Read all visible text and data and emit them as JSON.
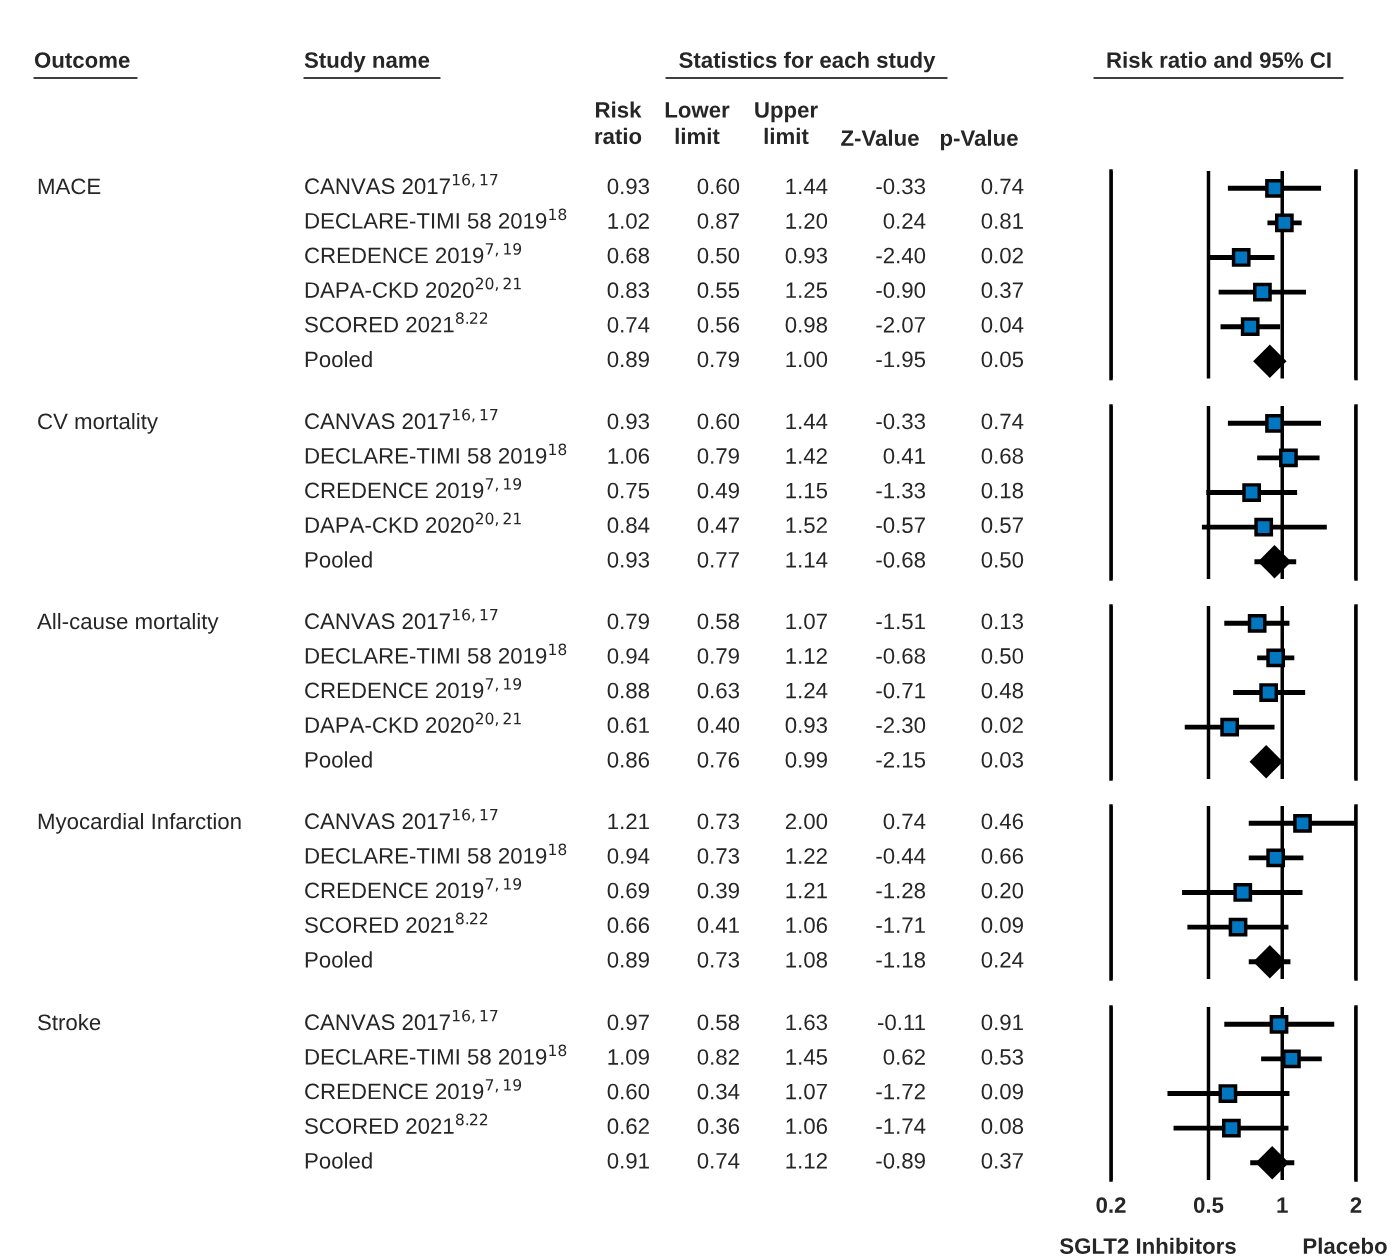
{
  "chart_data": [
    {
      "type": "other",
      "annotations": [
        "Outcome",
        "Study name",
        "Statistics for each study",
        "Risk ratio and 95% CI",
        "Risk\nratio",
        "Lower\nlimit",
        "Upper\nlimit",
        "Z-Value",
        "p-Value"
      ]
    },
    {
      "type": "scatter",
      "orientation": "horizontal",
      "log": "x",
      "xlim": [
        0.2,
        2
      ],
      "xticks": [
        0.2,
        0.5,
        1,
        2
      ],
      "grid": "x",
      "tick_labels": false,
      "categories": [
        "CANVAS 2017$^{16,17}$",
        "DECLARE-TIMI 58 2019$^{18}$",
        "CREDENCE 2019$^{7,19}$",
        "DAPA-CKD 2020$^{20,21}$",
        "SCORED 2021$^{8.22}$",
        "Pooled"
      ],
      "series": [
        {
          "color": "#0077c0",
          "marker": "square",
          "values": [
            0.93,
            1.02,
            0.68,
            0.83,
            0.74,
            null
          ],
          "errors": [
            [
              0.6,
              1.44
            ],
            [
              0.87,
              1.2
            ],
            [
              0.5,
              0.93
            ],
            [
              0.55,
              1.25
            ],
            [
              0.56,
              0.98
            ],
            null
          ]
        },
        {
          "color": "#000000",
          "marker": "diamond",
          "values": [
            null,
            null,
            null,
            null,
            null,
            0.89
          ],
          "errors": [
            null,
            null,
            null,
            null,
            null,
            [
              0.79,
              1.0
            ]
          ]
        }
      ],
      "annotations": [
        "MACE",
        "0.93",
        "0.60",
        "1.44",
        "-0.33",
        "0.74",
        "1.02",
        "0.87",
        "1.20",
        "0.24",
        "0.81",
        "0.68",
        "0.50",
        "0.93",
        "-2.40",
        "0.02",
        "0.83",
        "0.55",
        "1.25",
        "-0.90",
        "0.37",
        "0.74",
        "0.56",
        "0.98",
        "-2.07",
        "0.04",
        "0.89",
        "0.79",
        "1.00",
        "-1.95",
        "0.05"
      ]
    },
    {
      "type": "scatter",
      "orientation": "horizontal",
      "log": "x",
      "xlim": [
        0.2,
        2
      ],
      "xticks": [
        0.2,
        0.5,
        1,
        2
      ],
      "grid": "x",
      "tick_labels": false,
      "categories": [
        "CANVAS 2017$^{16,17}$",
        "DECLARE-TIMI 58 2019$^{18}$",
        "CREDENCE 2019$^{7,19}$",
        "DAPA-CKD 2020$^{20,21}$",
        "Pooled"
      ],
      "series": [
        {
          "color": "#0077c0",
          "marker": "square",
          "values": [
            0.93,
            1.06,
            0.75,
            0.84,
            null
          ],
          "errors": [
            [
              0.6,
              1.44
            ],
            [
              0.79,
              1.42
            ],
            [
              0.49,
              1.15
            ],
            [
              0.47,
              1.52
            ],
            null
          ]
        },
        {
          "color": "#000000",
          "marker": "diamond",
          "values": [
            null,
            null,
            null,
            null,
            0.93
          ],
          "errors": [
            null,
            null,
            null,
            null,
            [
              0.77,
              1.14
            ]
          ]
        }
      ],
      "annotations": [
        "CV mortality",
        "0.93",
        "0.60",
        "1.44",
        "-0.33",
        "0.74",
        "1.06",
        "0.79",
        "1.42",
        "0.41",
        "0.68",
        "0.75",
        "0.49",
        "1.15",
        "-1.33",
        "0.18",
        "0.84",
        "0.47",
        "1.52",
        "-0.57",
        "0.57",
        "0.93",
        "0.77",
        "1.14",
        "-0.68",
        "0.50"
      ]
    },
    {
      "type": "scatter",
      "orientation": "horizontal",
      "log": "x",
      "xlim": [
        0.2,
        2
      ],
      "xticks": [
        0.2,
        0.5,
        1,
        2
      ],
      "grid": "x",
      "tick_labels": false,
      "categories": [
        "CANVAS 2017$^{16,17}$",
        "DECLARE-TIMI 58 2019$^{18}$",
        "CREDENCE 2019$^{7,19}$",
        "DAPA-CKD 2020$^{20,21}$",
        "Pooled"
      ],
      "series": [
        {
          "color": "#0077c0",
          "marker": "square",
          "values": [
            0.79,
            0.94,
            0.88,
            0.61,
            null
          ],
          "errors": [
            [
              0.58,
              1.07
            ],
            [
              0.79,
              1.12
            ],
            [
              0.63,
              1.24
            ],
            [
              0.4,
              0.93
            ],
            null
          ]
        },
        {
          "color": "#000000",
          "marker": "diamond",
          "values": [
            null,
            null,
            null,
            null,
            0.86
          ],
          "errors": [
            null,
            null,
            null,
            null,
            [
              0.76,
              0.99
            ]
          ]
        }
      ],
      "annotations": [
        "All-cause mortality",
        "0.79",
        "0.58",
        "1.07",
        "-1.51",
        "0.13",
        "0.94",
        "0.79",
        "1.12",
        "-0.68",
        "0.50",
        "0.88",
        "0.63",
        "1.24",
        "-0.71",
        "0.48",
        "0.61",
        "0.40",
        "0.93",
        "-2.30",
        "0.02",
        "0.86",
        "0.76",
        "0.99",
        "-2.15",
        "0.03"
      ]
    },
    {
      "type": "scatter",
      "orientation": "horizontal",
      "log": "x",
      "xlim": [
        0.2,
        2
      ],
      "xticks": [
        0.2,
        0.5,
        1,
        2
      ],
      "grid": "x",
      "tick_labels": false,
      "categories": [
        "CANVAS 2017$^{16,17}$",
        "DECLARE-TIMI 58 2019$^{18}$",
        "CREDENCE 2019$^{7,19}$",
        "SCORED 2021$^{8.22}$",
        "Pooled"
      ],
      "series": [
        {
          "color": "#0077c0",
          "marker": "square",
          "values": [
            1.21,
            0.94,
            0.69,
            0.66,
            null
          ],
          "errors": [
            [
              0.73,
              2.0
            ],
            [
              0.73,
              1.22
            ],
            [
              0.39,
              1.21
            ],
            [
              0.41,
              1.06
            ],
            null
          ]
        },
        {
          "color": "#000000",
          "marker": "diamond",
          "values": [
            null,
            null,
            null,
            null,
            0.89
          ],
          "errors": [
            null,
            null,
            null,
            null,
            [
              0.73,
              1.08
            ]
          ]
        }
      ],
      "annotations": [
        "Myocardial Infarction",
        "1.21",
        "0.73",
        "2.00",
        "0.74",
        "0.46",
        "0.94",
        "0.73",
        "1.22",
        "-0.44",
        "0.66",
        "0.69",
        "0.39",
        "1.21",
        "-1.28",
        "0.20",
        "0.66",
        "0.41",
        "1.06",
        "-1.71",
        "0.09",
        "0.89",
        "0.73",
        "1.08",
        "-1.18",
        "0.24"
      ]
    },
    {
      "type": "scatter",
      "orientation": "horizontal",
      "log": "x",
      "xlim": [
        0.2,
        2
      ],
      "xticks": [
        0.2,
        0.5,
        1,
        2
      ],
      "grid": "x",
      "tick_labels": "x",
      "categories": [
        "CANVAS 2017$^{16,17}$",
        "DECLARE-TIMI 58 2019$^{18}$",
        "CREDENCE 2019$^{7,19}$",
        "SCORED 2021$^{8.22}$",
        "Pooled"
      ],
      "series": [
        {
          "color": "#0077c0",
          "marker": "square",
          "values": [
            0.97,
            1.09,
            0.6,
            0.62,
            null
          ],
          "errors": [
            [
              0.58,
              1.63
            ],
            [
              0.82,
              1.45
            ],
            [
              0.34,
              1.07
            ],
            [
              0.36,
              1.06
            ],
            null
          ]
        },
        {
          "color": "#000000",
          "marker": "diamond",
          "values": [
            null,
            null,
            null,
            null,
            0.91
          ],
          "errors": [
            null,
            null,
            null,
            null,
            [
              0.74,
              1.12
            ]
          ]
        }
      ],
      "annotations": [
        "Stroke",
        "0.97",
        "0.58",
        "1.63",
        "-0.11",
        "0.91",
        "1.09",
        "0.82",
        "1.45",
        "0.62",
        "0.53",
        "0.60",
        "0.34",
        "1.07",
        "-1.72",
        "0.09",
        "0.62",
        "0.36",
        "1.06",
        "-1.74",
        "0.08",
        "0.91",
        "0.74",
        "1.12",
        "-0.89",
        "0.37",
        "SGLT2 Inhibitors",
        "Placebo"
      ]
    }
  ]
}
